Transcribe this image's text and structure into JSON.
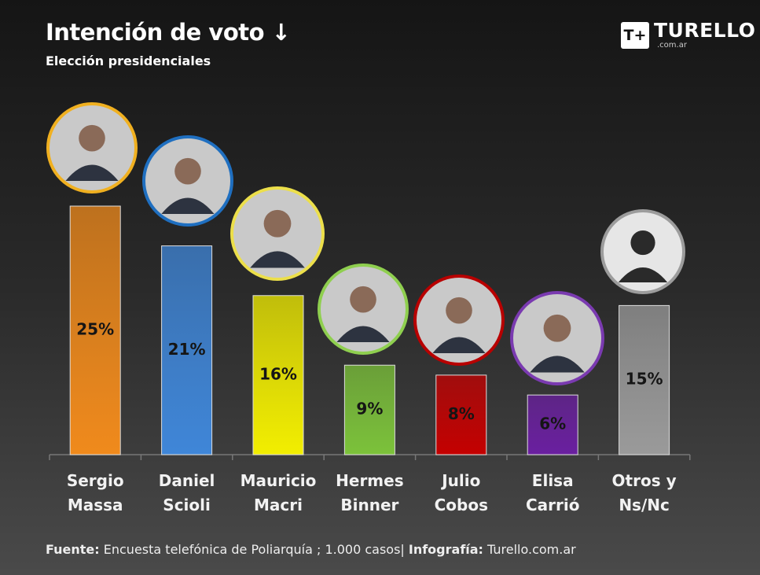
{
  "chart_data": {
    "type": "bar",
    "title": "Intención de voto ↓",
    "subtitle": "Elección presidenciales",
    "logo": {
      "mark": "T+",
      "name": "TURELLO",
      "domain": ".com.ar"
    },
    "categories": [
      "Sergio\nMassa",
      "Daniel\nScioli",
      "Mauricio\nMacri",
      "Hermes\nBinner",
      "Julio\nCobos",
      "Elisa\nCarrió",
      "Otros y\nNs/Nc"
    ],
    "values": [
      25,
      21,
      16,
      9,
      8,
      6,
      15
    ],
    "value_labels": [
      "25%",
      "21%",
      "16%",
      "9%",
      "8%",
      "6%",
      "15%"
    ],
    "colors": [
      "#f08a1c",
      "#3f86d8",
      "#f2ee00",
      "#7cc23a",
      "#c40000",
      "#6a1fa0",
      "#9a9a9a"
    ],
    "ring_colors": [
      "#f0b020",
      "#1f6fc0",
      "#ecdf4a",
      "#8fcf4f",
      "#b80000",
      "#7a3ab0",
      "#9c9c9c"
    ],
    "footer": {
      "source_label": "Fuente:",
      "source_text": " Encuesta telefónica de Poliarquía ; 1.000 casos| ",
      "credit_label": "Infografía:",
      "credit_text": " Turello.com.ar"
    }
  }
}
